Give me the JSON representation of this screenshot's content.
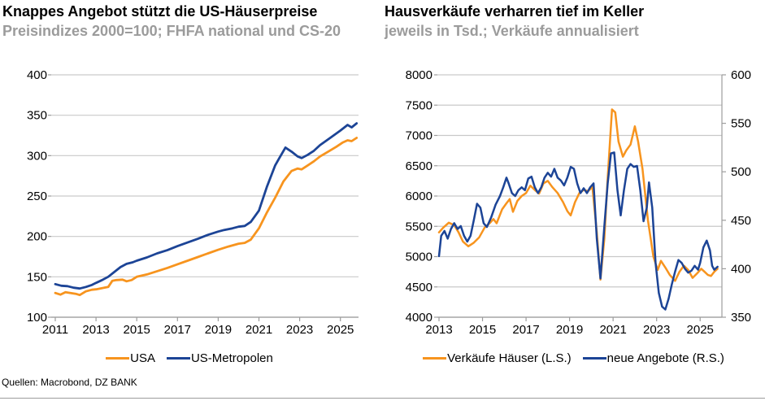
{
  "source": "Quellen: Macrobond, DZ BANK",
  "colors": {
    "series_orange": "#F7941E",
    "series_blue": "#1C4496",
    "grid": "#C9C9C9",
    "axis": "#9C9C9C",
    "subtitle_gray": "#9B9B9B"
  },
  "chart_data": [
    {
      "type": "line",
      "title": "Knappes Angebot stützt die US-Häuserpreise",
      "subtitle": "Preisindizes 2000=100; FHFA national und CS-20",
      "xlim": [
        2011,
        2025.85
      ],
      "ylim_left": [
        100,
        400
      ],
      "y_ticks_left": [
        100,
        150,
        200,
        250,
        300,
        350,
        400
      ],
      "x_ticks": [
        2011,
        2013,
        2015,
        2017,
        2019,
        2021,
        2023,
        2025
      ],
      "legend_position": "bottom",
      "grid": true,
      "series": [
        {
          "name": "USA",
          "color": "series_orange",
          "axis": "left",
          "x": [
            2011.0,
            2011.25,
            2011.5,
            2011.75,
            2012.0,
            2012.2,
            2012.5,
            2012.8,
            2013.0,
            2013.3,
            2013.6,
            2013.8,
            2014.0,
            2014.3,
            2014.5,
            2014.75,
            2015.0,
            2015.5,
            2016.0,
            2016.5,
            2017.0,
            2017.5,
            2018.0,
            2018.5,
            2019.0,
            2019.5,
            2020.0,
            2020.3,
            2020.6,
            2021.0,
            2021.4,
            2021.8,
            2022.2,
            2022.6,
            2022.9,
            2023.1,
            2023.4,
            2023.7,
            2024.0,
            2024.4,
            2024.8,
            2025.1,
            2025.35,
            2025.55,
            2025.8
          ],
          "values": [
            130,
            128,
            131,
            130,
            129,
            127.5,
            132,
            134,
            134.5,
            136,
            137.5,
            145,
            146,
            146.5,
            144.5,
            146,
            150,
            153,
            157,
            161,
            165.5,
            170,
            174.5,
            179,
            183.5,
            187.5,
            191,
            192,
            196,
            210,
            230,
            248,
            268,
            281,
            284,
            283,
            288,
            293,
            299,
            305,
            311,
            316,
            319,
            318,
            322
          ]
        },
        {
          "name": "US-Metropolen",
          "color": "series_blue",
          "axis": "left",
          "x": [
            2011.0,
            2011.3,
            2011.6,
            2011.9,
            2012.2,
            2012.5,
            2012.8,
            2013.0,
            2013.3,
            2013.6,
            2013.9,
            2014.2,
            2014.5,
            2014.8,
            2015.0,
            2015.5,
            2016.0,
            2016.5,
            2017.0,
            2017.5,
            2018.0,
            2018.5,
            2019.0,
            2019.3,
            2019.7,
            2020.0,
            2020.3,
            2020.6,
            2021.0,
            2021.4,
            2021.8,
            2022.0,
            2022.3,
            2022.6,
            2022.9,
            2023.1,
            2023.4,
            2023.7,
            2024.0,
            2024.5,
            2025.0,
            2025.35,
            2025.55,
            2025.8
          ],
          "values": [
            141,
            139,
            138.5,
            136.5,
            135.5,
            137.5,
            140,
            142.5,
            146,
            150,
            156,
            162,
            166,
            168,
            170,
            174,
            179,
            183,
            188,
            192.5,
            197,
            202,
            206,
            208,
            210,
            212,
            213,
            218,
            232,
            262,
            288,
            297,
            310,
            305,
            299,
            297,
            301,
            306,
            313,
            322,
            331,
            338,
            335,
            340
          ]
        }
      ]
    },
    {
      "type": "line",
      "title": "Hausverkäufe verharren tief im Keller",
      "subtitle": "jeweils in Tsd.; Verkäufe annualisiert",
      "xlim": [
        2013,
        2026
      ],
      "ylim_left": [
        4000,
        8000
      ],
      "y_ticks_left": [
        4000,
        4500,
        5000,
        5500,
        6000,
        6500,
        7000,
        7500,
        8000
      ],
      "ylim_right": [
        350,
        600
      ],
      "y_ticks_right": [
        350,
        400,
        450,
        500,
        550,
        600
      ],
      "x_ticks": [
        2013,
        2015,
        2017,
        2019,
        2021,
        2023,
        2025
      ],
      "legend_position": "bottom",
      "grid": true,
      "series": [
        {
          "name": "Verkäufe Häuser (L.S.)",
          "color": "series_orange",
          "axis": "left",
          "x": [
            2013.0,
            2013.2,
            2013.45,
            2013.7,
            2013.9,
            2014.1,
            2014.35,
            2014.6,
            2014.85,
            2015.1,
            2015.35,
            2015.5,
            2015.65,
            2015.9,
            2016.1,
            2016.25,
            2016.4,
            2016.6,
            2016.8,
            2017.0,
            2017.2,
            2017.4,
            2017.6,
            2017.8,
            2018.0,
            2018.2,
            2018.45,
            2018.7,
            2018.9,
            2019.05,
            2019.25,
            2019.45,
            2019.65,
            2019.85,
            2020.05,
            2020.25,
            2020.42,
            2020.6,
            2020.75,
            2020.95,
            2021.1,
            2021.25,
            2021.45,
            2021.6,
            2021.8,
            2022.0,
            2022.15,
            2022.35,
            2022.6,
            2022.85,
            2023.05,
            2023.2,
            2023.4,
            2023.6,
            2023.85,
            2024.05,
            2024.25,
            2024.45,
            2024.65,
            2024.85,
            2025.05,
            2025.2,
            2025.35,
            2025.5,
            2025.65,
            2025.8
          ],
          "values": [
            5400,
            5480,
            5560,
            5520,
            5400,
            5250,
            5170,
            5230,
            5320,
            5480,
            5560,
            5620,
            5550,
            5780,
            5880,
            5950,
            5740,
            5920,
            6000,
            6050,
            6170,
            6100,
            6040,
            6210,
            6250,
            6150,
            6050,
            5900,
            5750,
            5680,
            5900,
            6050,
            6100,
            6080,
            6150,
            5400,
            4620,
            5300,
            6300,
            7430,
            7380,
            6900,
            6650,
            6750,
            6850,
            7150,
            6900,
            6450,
            5600,
            5000,
            4780,
            4930,
            4820,
            4700,
            4600,
            4750,
            4850,
            4780,
            4650,
            4720,
            4800,
            4750,
            4700,
            4680,
            4750,
            4800
          ]
        },
        {
          "name": "neue Angebote (R.S.)",
          "color": "series_blue",
          "axis": "right",
          "x": [
            2013.0,
            2013.1,
            2013.25,
            2013.4,
            2013.55,
            2013.7,
            2013.85,
            2014.0,
            2014.15,
            2014.3,
            2014.45,
            2014.6,
            2014.75,
            2014.9,
            2015.05,
            2015.2,
            2015.4,
            2015.6,
            2015.8,
            2015.95,
            2016.1,
            2016.2,
            2016.35,
            2016.5,
            2016.65,
            2016.8,
            2016.95,
            2017.1,
            2017.25,
            2017.4,
            2017.55,
            2017.7,
            2017.85,
            2018.0,
            2018.15,
            2018.3,
            2018.45,
            2018.6,
            2018.75,
            2018.9,
            2019.05,
            2019.2,
            2019.35,
            2019.5,
            2019.65,
            2019.8,
            2019.95,
            2020.1,
            2020.25,
            2020.42,
            2020.6,
            2020.75,
            2020.9,
            2021.05,
            2021.2,
            2021.35,
            2021.5,
            2021.65,
            2021.8,
            2021.95,
            2022.1,
            2022.25,
            2022.4,
            2022.55,
            2022.65,
            2022.8,
            2022.95,
            2023.1,
            2023.25,
            2023.4,
            2023.55,
            2023.7,
            2023.85,
            2024.0,
            2024.15,
            2024.3,
            2024.45,
            2024.6,
            2024.75,
            2024.9,
            2025.0,
            2025.15,
            2025.3,
            2025.45,
            2025.55,
            2025.65,
            2025.8
          ],
          "values": [
            413,
            434,
            439,
            431,
            441,
            447,
            441,
            444,
            434,
            428,
            434,
            450,
            467,
            463,
            447,
            443,
            453,
            466,
            475,
            484,
            494,
            488,
            478,
            475,
            481,
            484,
            481,
            493,
            495,
            484,
            478,
            484,
            494,
            499,
            495,
            503,
            494,
            491,
            486,
            494,
            505,
            503,
            488,
            478,
            483,
            478,
            484,
            488,
            431,
            390,
            444,
            488,
            519,
            520,
            481,
            455,
            481,
            503,
            508,
            505,
            506,
            481,
            449,
            463,
            489,
            463,
            406,
            375,
            361,
            358,
            369,
            384,
            397,
            409,
            406,
            400,
            396,
            398,
            403,
            399,
            406,
            422,
            429,
            419,
            403,
            399,
            402
          ]
        }
      ]
    }
  ]
}
